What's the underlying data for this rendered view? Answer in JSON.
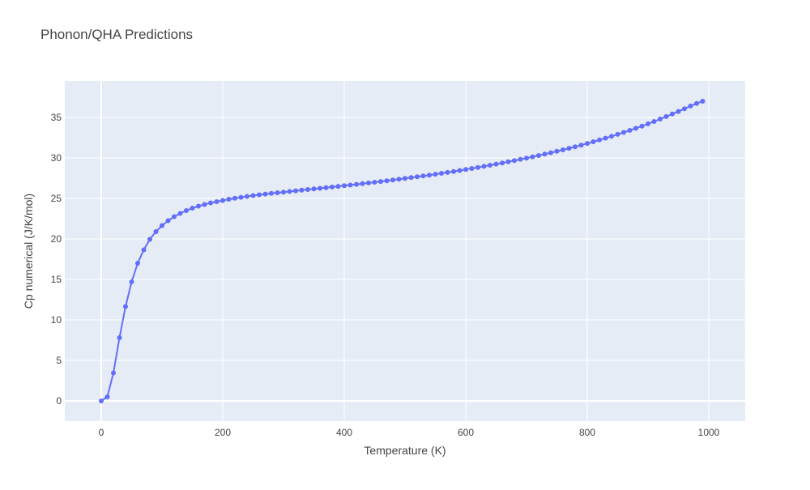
{
  "chart_data": {
    "type": "line",
    "mode": "lines+markers",
    "title": "Phonon/QHA Predictions",
    "xlabel": "Temperature (K)",
    "ylabel": "Cp numerical (J/K/mol)",
    "xlim": [
      -60,
      1060
    ],
    "ylim": [
      -2.5,
      39.5
    ],
    "xticks": [
      0,
      200,
      400,
      600,
      800,
      1000
    ],
    "yticks": [
      0,
      5,
      10,
      15,
      20,
      25,
      30,
      35
    ],
    "grid": true,
    "legend": "none",
    "colors": {
      "series": "#636efa",
      "plot_bg": "#e5ecf6",
      "grid": "#ffffff"
    },
    "x": [
      0,
      10,
      20,
      30,
      40,
      50,
      60,
      70,
      80,
      90,
      100,
      110,
      120,
      130,
      140,
      150,
      160,
      170,
      180,
      190,
      200,
      210,
      220,
      230,
      240,
      250,
      260,
      270,
      280,
      290,
      300,
      310,
      320,
      330,
      340,
      350,
      360,
      370,
      380,
      390,
      400,
      410,
      420,
      430,
      440,
      450,
      460,
      470,
      480,
      490,
      500,
      510,
      520,
      530,
      540,
      550,
      560,
      570,
      580,
      590,
      600,
      610,
      620,
      630,
      640,
      650,
      660,
      670,
      680,
      690,
      700,
      710,
      720,
      730,
      740,
      750,
      760,
      770,
      780,
      790,
      800,
      810,
      820,
      830,
      840,
      850,
      860,
      870,
      880,
      890,
      900,
      910,
      920,
      930,
      940,
      950,
      960,
      970,
      980,
      990
    ],
    "series": [
      {
        "values": [
          0,
          0.5,
          3.45,
          7.8,
          11.65,
          14.7,
          17.0,
          18.65,
          19.95,
          20.9,
          21.65,
          22.25,
          22.75,
          23.15,
          23.5,
          23.8,
          24.05,
          24.25,
          24.45,
          24.6,
          24.75,
          24.9,
          25.02,
          25.14,
          25.25,
          25.35,
          25.45,
          25.54,
          25.62,
          25.7,
          25.78,
          25.86,
          25.94,
          26.02,
          26.1,
          26.18,
          26.25,
          26.33,
          26.41,
          26.49,
          26.57,
          26.65,
          26.74,
          26.82,
          26.91,
          27.0,
          27.09,
          27.18,
          27.27,
          27.37,
          27.47,
          27.57,
          27.67,
          27.77,
          27.88,
          27.99,
          28.1,
          28.21,
          28.33,
          28.45,
          28.57,
          28.7,
          28.83,
          28.96,
          29.1,
          29.24,
          29.38,
          29.52,
          29.67,
          29.82,
          29.98,
          30.14,
          30.3,
          30.47,
          30.64,
          30.82,
          31.0,
          31.19,
          31.38,
          31.58,
          31.79,
          32.0,
          32.22,
          32.44,
          32.67,
          32.91,
          33.15,
          33.4,
          33.66,
          33.93,
          34.21,
          34.5,
          34.8,
          35.11,
          35.42,
          35.74,
          36.07,
          36.41,
          36.73,
          37.0
        ]
      }
    ]
  }
}
